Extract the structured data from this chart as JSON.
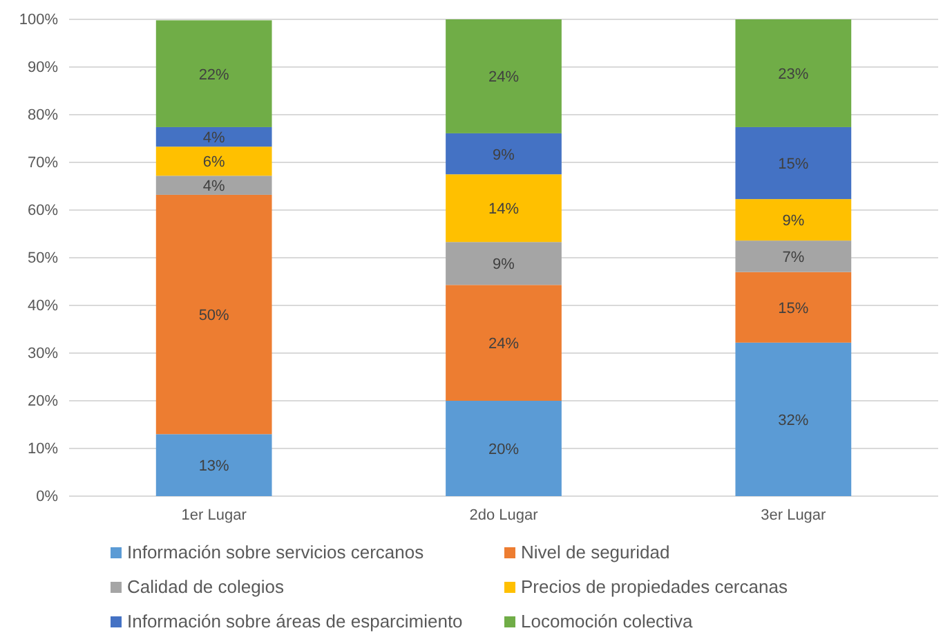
{
  "chart_data": {
    "type": "bar",
    "stacked": true,
    "categories": [
      "1er Lugar",
      "2do Lugar",
      "3er Lugar"
    ],
    "series": [
      {
        "name": "Información sobre servicios cercanos",
        "color": "#5b9bd5",
        "values": [
          13.0,
          20.0,
          32.2
        ],
        "value_labels": [
          "13%",
          "20%",
          "32%"
        ]
      },
      {
        "name": "Nivel de seguridad",
        "color": "#ed7d31",
        "values": [
          50.2,
          24.3,
          14.8
        ],
        "value_labels": [
          "50%",
          "24%",
          "15%"
        ]
      },
      {
        "name": "Calidad de colegios",
        "color": "#a5a5a5",
        "values": [
          4.0,
          9.0,
          6.6
        ],
        "value_labels": [
          "4%",
          "9%",
          "7%"
        ]
      },
      {
        "name": "Precios de propiedades cercanas",
        "color": "#ffc000",
        "values": [
          6.1,
          14.2,
          8.7
        ],
        "value_labels": [
          "6%",
          "14%",
          "9%"
        ]
      },
      {
        "name": "Información sobre áreas de esparcimiento",
        "color": "#4472c4",
        "values": [
          4.1,
          8.6,
          15.1
        ],
        "value_labels": [
          "4%",
          "9%",
          "15%"
        ]
      },
      {
        "name": "Locomoción colectiva",
        "color": "#70ad47",
        "values": [
          22.4,
          23.9,
          22.6
        ],
        "value_labels": [
          "22%",
          "24%",
          "23%"
        ]
      }
    ],
    "ylim": [
      0,
      100
    ],
    "yticks": [
      {
        "value": 0,
        "label": "0%"
      },
      {
        "value": 10,
        "label": "10%"
      },
      {
        "value": 20,
        "label": "20%"
      },
      {
        "value": 30,
        "label": "30%"
      },
      {
        "value": 40,
        "label": "40%"
      },
      {
        "value": 50,
        "label": "50%"
      },
      {
        "value": 60,
        "label": "60%"
      },
      {
        "value": 70,
        "label": "70%"
      },
      {
        "value": 80,
        "label": "80%"
      },
      {
        "value": 90,
        "label": "90%"
      },
      {
        "value": 100,
        "label": "100%"
      }
    ],
    "grid": "y",
    "legend": "bottom"
  }
}
